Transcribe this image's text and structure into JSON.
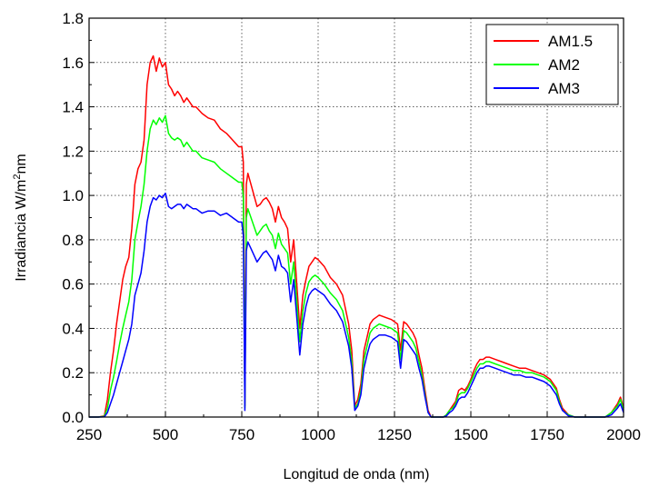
{
  "chart_data": {
    "type": "line",
    "title": "",
    "xlabel": "Longitud de onda (nm)",
    "ylabel_main": "Irradiancia W/m",
    "ylabel_sup": "2",
    "ylabel_tail": "nm",
    "xlim": [
      250,
      2000
    ],
    "ylim": [
      0.0,
      1.8
    ],
    "xticks": [
      250,
      500,
      750,
      1000,
      1250,
      1500,
      1750,
      2000
    ],
    "xtick_labels": [
      "250",
      "500",
      "750",
      "1000",
      "1250",
      "1500",
      "1750",
      "2000"
    ],
    "yticks": [
      0.0,
      0.2,
      0.4,
      0.6,
      0.8,
      1.0,
      1.2,
      1.4,
      1.6,
      1.8
    ],
    "ytick_labels": [
      "0.0",
      "0.2",
      "0.4",
      "0.6",
      "0.8",
      "1.0",
      "1.2",
      "1.4",
      "1.6",
      "1.8"
    ],
    "grid": true,
    "legend_position": "top-right",
    "x": [
      250,
      280,
      300,
      310,
      320,
      330,
      340,
      350,
      360,
      370,
      380,
      390,
      400,
      410,
      420,
      430,
      440,
      450,
      460,
      470,
      480,
      490,
      500,
      510,
      520,
      530,
      540,
      550,
      560,
      570,
      580,
      590,
      600,
      620,
      640,
      660,
      680,
      700,
      720,
      740,
      750,
      755,
      760,
      765,
      770,
      780,
      800,
      810,
      820,
      830,
      840,
      850,
      860,
      870,
      880,
      890,
      900,
      910,
      920,
      930,
      940,
      950,
      960,
      970,
      980,
      990,
      1000,
      1020,
      1040,
      1060,
      1080,
      1100,
      1110,
      1120,
      1130,
      1140,
      1150,
      1160,
      1170,
      1180,
      1190,
      1200,
      1220,
      1240,
      1260,
      1270,
      1280,
      1290,
      1300,
      1310,
      1320,
      1330,
      1340,
      1350,
      1360,
      1370,
      1380,
      1390,
      1400,
      1410,
      1420,
      1430,
      1440,
      1450,
      1460,
      1470,
      1480,
      1490,
      1500,
      1510,
      1520,
      1530,
      1540,
      1550,
      1560,
      1580,
      1600,
      1620,
      1640,
      1660,
      1680,
      1700,
      1720,
      1740,
      1760,
      1780,
      1790,
      1800,
      1820,
      1840,
      1860,
      1880,
      1900,
      1920,
      1940,
      1960,
      1980,
      1990,
      2000
    ],
    "series": [
      {
        "name": "AM1.5",
        "color": "#ff0000",
        "values": [
          0,
          0,
          0.005,
          0.08,
          0.2,
          0.3,
          0.42,
          0.52,
          0.62,
          0.68,
          0.72,
          0.85,
          1.05,
          1.12,
          1.15,
          1.25,
          1.5,
          1.6,
          1.63,
          1.56,
          1.62,
          1.58,
          1.6,
          1.5,
          1.48,
          1.45,
          1.47,
          1.45,
          1.42,
          1.44,
          1.42,
          1.4,
          1.4,
          1.37,
          1.35,
          1.34,
          1.3,
          1.28,
          1.25,
          1.22,
          1.22,
          1.15,
          0.05,
          1.05,
          1.1,
          1.05,
          0.95,
          0.96,
          0.98,
          0.99,
          0.97,
          0.94,
          0.88,
          0.95,
          0.9,
          0.88,
          0.85,
          0.7,
          0.8,
          0.6,
          0.4,
          0.55,
          0.62,
          0.68,
          0.7,
          0.72,
          0.71,
          0.68,
          0.63,
          0.6,
          0.55,
          0.42,
          0.3,
          0.05,
          0.08,
          0.15,
          0.3,
          0.36,
          0.42,
          0.44,
          0.45,
          0.46,
          0.45,
          0.44,
          0.42,
          0.3,
          0.43,
          0.42,
          0.4,
          0.38,
          0.35,
          0.28,
          0.22,
          0.12,
          0.03,
          0,
          0,
          0,
          0,
          0,
          0.01,
          0.03,
          0.05,
          0.07,
          0.12,
          0.13,
          0.12,
          0.14,
          0.17,
          0.21,
          0.24,
          0.26,
          0.26,
          0.27,
          0.27,
          0.26,
          0.25,
          0.24,
          0.23,
          0.22,
          0.22,
          0.21,
          0.2,
          0.19,
          0.17,
          0.13,
          0.08,
          0.04,
          0.01,
          0,
          0,
          0,
          0,
          0,
          0,
          0.02,
          0.06,
          0.09,
          0.04
        ]
      },
      {
        "name": "AM2",
        "color": "#00ff00",
        "values": [
          0,
          0,
          0.003,
          0.04,
          0.12,
          0.18,
          0.25,
          0.33,
          0.4,
          0.46,
          0.52,
          0.62,
          0.8,
          0.88,
          0.95,
          1.05,
          1.2,
          1.3,
          1.34,
          1.32,
          1.35,
          1.33,
          1.36,
          1.28,
          1.26,
          1.25,
          1.26,
          1.25,
          1.22,
          1.24,
          1.22,
          1.2,
          1.2,
          1.17,
          1.16,
          1.15,
          1.12,
          1.1,
          1.08,
          1.06,
          1.06,
          1.0,
          0.04,
          0.9,
          0.94,
          0.9,
          0.82,
          0.84,
          0.86,
          0.87,
          0.84,
          0.82,
          0.76,
          0.83,
          0.78,
          0.76,
          0.74,
          0.6,
          0.7,
          0.52,
          0.34,
          0.48,
          0.56,
          0.61,
          0.63,
          0.64,
          0.63,
          0.6,
          0.56,
          0.53,
          0.48,
          0.36,
          0.25,
          0.04,
          0.06,
          0.12,
          0.26,
          0.32,
          0.38,
          0.4,
          0.41,
          0.42,
          0.41,
          0.4,
          0.38,
          0.26,
          0.39,
          0.38,
          0.36,
          0.34,
          0.31,
          0.25,
          0.19,
          0.1,
          0.02,
          0,
          0,
          0,
          0,
          0,
          0.01,
          0.03,
          0.04,
          0.06,
          0.1,
          0.11,
          0.11,
          0.13,
          0.16,
          0.19,
          0.22,
          0.24,
          0.24,
          0.25,
          0.25,
          0.24,
          0.23,
          0.22,
          0.21,
          0.21,
          0.2,
          0.2,
          0.19,
          0.18,
          0.16,
          0.12,
          0.07,
          0.03,
          0.01,
          0,
          0,
          0,
          0,
          0,
          0,
          0.02,
          0.05,
          0.08,
          0.03
        ]
      },
      {
        "name": "AM3",
        "color": "#0000ff",
        "values": [
          0,
          0,
          0.001,
          0.02,
          0.06,
          0.1,
          0.15,
          0.2,
          0.25,
          0.3,
          0.35,
          0.42,
          0.55,
          0.6,
          0.65,
          0.75,
          0.88,
          0.95,
          0.99,
          0.98,
          1.0,
          0.99,
          1.01,
          0.95,
          0.94,
          0.95,
          0.96,
          0.96,
          0.94,
          0.96,
          0.95,
          0.94,
          0.94,
          0.92,
          0.93,
          0.93,
          0.91,
          0.92,
          0.9,
          0.88,
          0.88,
          0.82,
          0.03,
          0.75,
          0.79,
          0.76,
          0.7,
          0.72,
          0.74,
          0.75,
          0.73,
          0.71,
          0.66,
          0.73,
          0.68,
          0.67,
          0.65,
          0.52,
          0.62,
          0.45,
          0.28,
          0.42,
          0.5,
          0.55,
          0.57,
          0.58,
          0.57,
          0.55,
          0.51,
          0.48,
          0.43,
          0.32,
          0.22,
          0.03,
          0.05,
          0.1,
          0.22,
          0.28,
          0.33,
          0.35,
          0.36,
          0.37,
          0.37,
          0.36,
          0.34,
          0.22,
          0.35,
          0.34,
          0.32,
          0.3,
          0.28,
          0.22,
          0.17,
          0.09,
          0.02,
          0,
          0,
          0,
          0,
          0,
          0.005,
          0.02,
          0.03,
          0.05,
          0.08,
          0.09,
          0.09,
          0.11,
          0.14,
          0.17,
          0.2,
          0.22,
          0.22,
          0.23,
          0.23,
          0.22,
          0.21,
          0.2,
          0.19,
          0.19,
          0.18,
          0.18,
          0.17,
          0.16,
          0.14,
          0.1,
          0.06,
          0.03,
          0.005,
          0,
          0,
          0,
          0,
          0,
          0,
          0.01,
          0.04,
          0.06,
          0.02
        ]
      }
    ]
  }
}
